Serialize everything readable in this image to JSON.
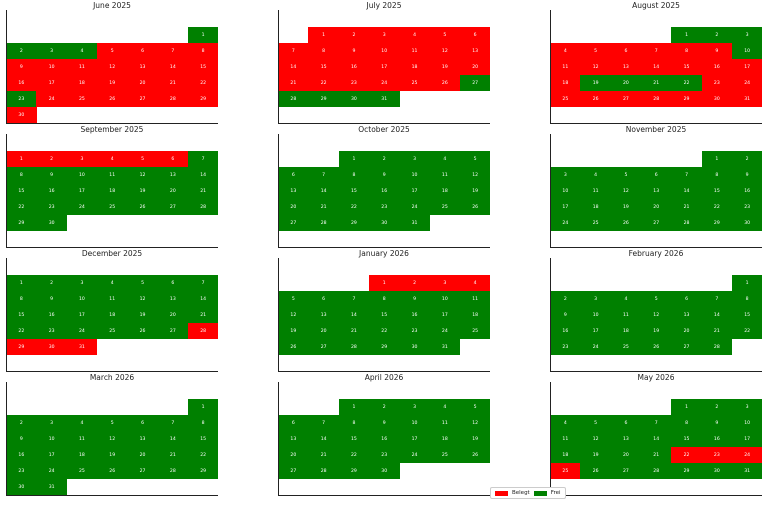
{
  "chart_data": {
    "type": "heatmap",
    "colors": {
      "Belegt": "#ff0000",
      "Frei": "#008000"
    },
    "legend": {
      "placement": "bottom-center",
      "entries": [
        "Belegt",
        "Frei"
      ]
    },
    "months": [
      {
        "title": "June 2025",
        "year": 2025,
        "month": 6,
        "belegt": [
          5,
          6,
          7,
          8,
          9,
          10,
          11,
          12,
          13,
          14,
          15,
          16,
          17,
          18,
          19,
          20,
          21,
          22,
          24,
          25,
          26,
          27,
          28,
          29,
          30
        ]
      },
      {
        "title": "July 2025",
        "year": 2025,
        "month": 7,
        "belegt": [
          1,
          2,
          3,
          4,
          5,
          6,
          7,
          8,
          9,
          10,
          11,
          12,
          13,
          14,
          15,
          16,
          17,
          18,
          19,
          20,
          21,
          22,
          23,
          24,
          25,
          26
        ]
      },
      {
        "title": "August 2025",
        "year": 2025,
        "month": 8,
        "belegt": [
          4,
          5,
          6,
          7,
          8,
          9,
          11,
          12,
          13,
          14,
          15,
          16,
          17,
          18,
          23,
          24,
          25,
          26,
          27,
          28,
          29,
          30,
          31
        ]
      },
      {
        "title": "September 2025",
        "year": 2025,
        "month": 9,
        "belegt": [
          1,
          2,
          3,
          4,
          5,
          6
        ]
      },
      {
        "title": "October 2025",
        "year": 2025,
        "month": 10,
        "belegt": []
      },
      {
        "title": "November 2025",
        "year": 2025,
        "month": 11,
        "belegt": []
      },
      {
        "title": "December 2025",
        "year": 2025,
        "month": 12,
        "belegt": [
          28,
          29,
          30,
          31
        ]
      },
      {
        "title": "January 2026",
        "year": 2026,
        "month": 1,
        "belegt": [
          1,
          2,
          3,
          4
        ]
      },
      {
        "title": "February 2026",
        "year": 2026,
        "month": 2,
        "belegt": []
      },
      {
        "title": "March 2026",
        "year": 2026,
        "month": 3,
        "belegt": []
      },
      {
        "title": "April 2026",
        "year": 2026,
        "month": 4,
        "belegt": []
      },
      {
        "title": "May 2026",
        "year": 2026,
        "month": 5,
        "belegt": [
          22,
          23,
          24,
          25
        ]
      }
    ]
  }
}
